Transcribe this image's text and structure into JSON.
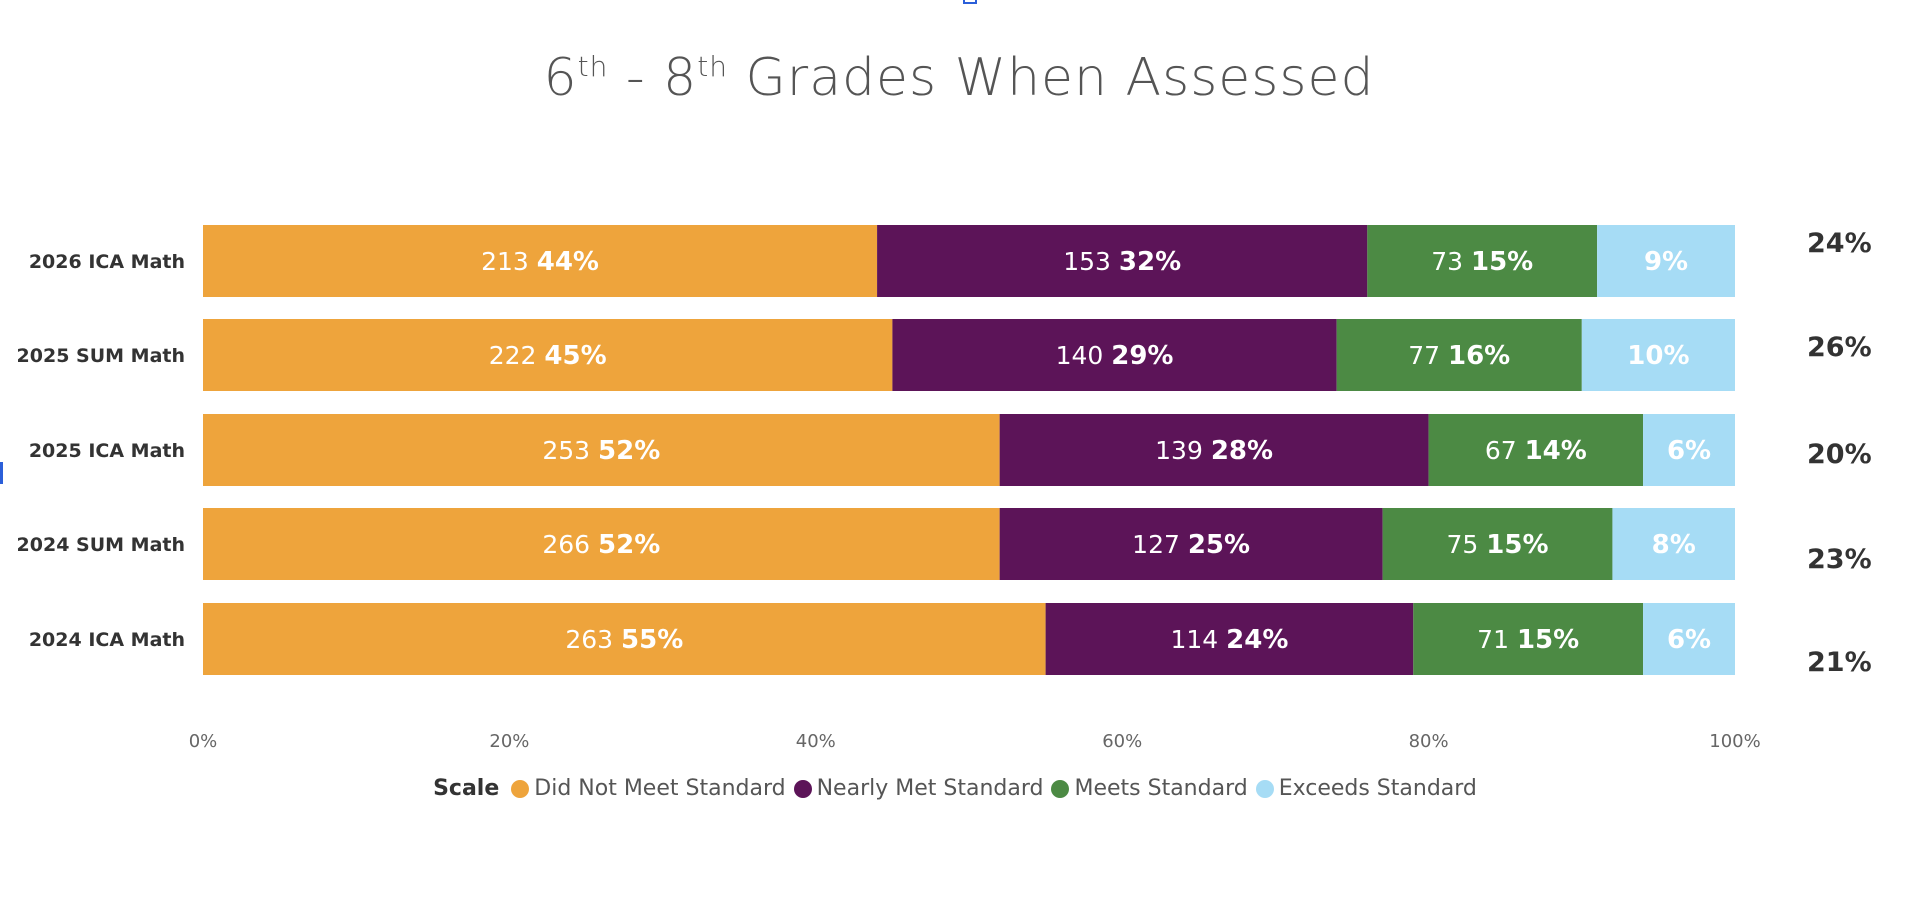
{
  "chart_data": {
    "type": "bar",
    "orientation": "horizontal",
    "stacked": "percent",
    "title": {
      "prefix": "6",
      "sup1": "th",
      "mid": " - 8",
      "sup2": "th",
      "suffix": " Grades When Assessed"
    },
    "categories": [
      "2026 ICA Math",
      "2025 SUM Math",
      "2025 ICA Math",
      "2024 SUM Math",
      "2024 ICA Math"
    ],
    "series": [
      {
        "name": "Did Not Meet Standard",
        "color": "#eea43c",
        "counts": [
          213,
          222,
          253,
          266,
          263
        ],
        "values": [
          44,
          45,
          52,
          52,
          55
        ],
        "labels": [
          "44%",
          "45%",
          "52%",
          "52%",
          "55%"
        ],
        "count_labels": [
          "213",
          "222",
          "253",
          "266",
          "263"
        ]
      },
      {
        "name": "Nearly Met Standard",
        "color": "#5c1458",
        "counts": [
          153,
          140,
          139,
          127,
          114
        ],
        "values": [
          32,
          29,
          28,
          25,
          24
        ],
        "labels": [
          "32%",
          "29%",
          "28%",
          "25%",
          "24%"
        ],
        "count_labels": [
          "153",
          "140",
          "139",
          "127",
          "114"
        ]
      },
      {
        "name": "Meets Standard",
        "color": "#4c8a44",
        "counts": [
          73,
          77,
          67,
          75,
          71
        ],
        "values": [
          15,
          16,
          14,
          15,
          15
        ],
        "labels": [
          "15%",
          "16%",
          "14%",
          "15%",
          "15%"
        ],
        "count_labels": [
          "73",
          "77",
          "67",
          "75",
          "71"
        ]
      },
      {
        "name": "Exceeds Standard",
        "color": "#a6dcf5",
        "counts": [
          null,
          null,
          null,
          null,
          null
        ],
        "values": [
          9,
          10,
          6,
          8,
          6
        ],
        "labels": [
          "9%",
          "10%",
          "6%",
          "8%",
          "6%"
        ],
        "count_labels": [
          "",
          "",
          "",
          "",
          ""
        ]
      }
    ],
    "totals_right": [
      "24%",
      "26%",
      "20%",
      "23%",
      "21%"
    ],
    "xlim": [
      0,
      100
    ],
    "xticks": [
      "0%",
      "20%",
      "40%",
      "60%",
      "80%",
      "100%"
    ],
    "xlabel": "",
    "ylabel": "",
    "grid": false,
    "legend": {
      "title": "Scale",
      "placement": "bottom"
    }
  }
}
